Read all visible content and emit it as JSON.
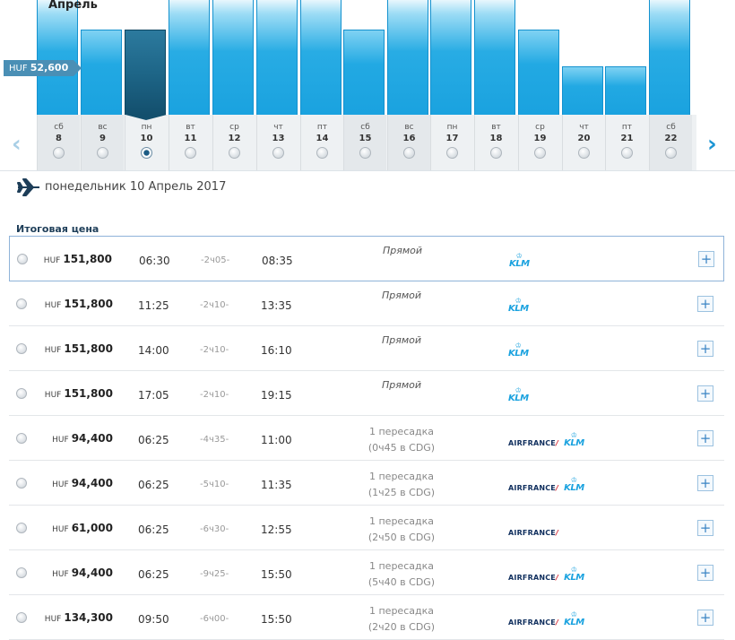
{
  "calendar": {
    "month": "Апрель",
    "lowest_price": {
      "currency": "HUF",
      "amount": "52,600"
    },
    "days": [
      {
        "dow": "сб",
        "num": "8",
        "weekend": true,
        "level": 0.95,
        "selected": false
      },
      {
        "dow": "вс",
        "num": "9",
        "weekend": true,
        "level": 0.7,
        "selected": false
      },
      {
        "dow": "пн",
        "num": "10",
        "weekend": false,
        "level": 0.7,
        "selected": true
      },
      {
        "dow": "вт",
        "num": "11",
        "weekend": false,
        "level": 0.95,
        "selected": false
      },
      {
        "dow": "ср",
        "num": "12",
        "weekend": false,
        "level": 0.95,
        "selected": false
      },
      {
        "dow": "чт",
        "num": "13",
        "weekend": false,
        "level": 0.95,
        "selected": false
      },
      {
        "dow": "пт",
        "num": "14",
        "weekend": false,
        "level": 0.95,
        "selected": false
      },
      {
        "dow": "сб",
        "num": "15",
        "weekend": true,
        "level": 0.7,
        "selected": false
      },
      {
        "dow": "вс",
        "num": "16",
        "weekend": true,
        "level": 0.95,
        "selected": false
      },
      {
        "dow": "пн",
        "num": "17",
        "weekend": false,
        "level": 0.95,
        "selected": false
      },
      {
        "dow": "вт",
        "num": "18",
        "weekend": false,
        "level": 0.95,
        "selected": false
      },
      {
        "dow": "ср",
        "num": "19",
        "weekend": false,
        "level": 0.7,
        "selected": false
      },
      {
        "dow": "чт",
        "num": "20",
        "weekend": false,
        "level": 0.4,
        "selected": false
      },
      {
        "dow": "пт",
        "num": "21",
        "weekend": false,
        "level": 0.4,
        "selected": false
      },
      {
        "dow": "сб",
        "num": "22",
        "weekend": true,
        "level": 0.95,
        "selected": false
      }
    ],
    "prev_icon": "chevron-left-icon",
    "next_icon": "chevron-right-icon"
  },
  "date_header": {
    "icon": "plane-icon",
    "label": "понедельник 10 Апрель 2017"
  },
  "total_price_label": "Итоговая цена",
  "flights": [
    {
      "currency": "HUF",
      "price": "151,800",
      "dep": "06:30",
      "dur": "-2ч05-",
      "arr": "08:35",
      "stops": "Прямой",
      "stops_detail": "",
      "airlines": [
        "KLM"
      ]
    },
    {
      "currency": "HUF",
      "price": "151,800",
      "dep": "11:25",
      "dur": "-2ч10-",
      "arr": "13:35",
      "stops": "Прямой",
      "stops_detail": "",
      "airlines": [
        "KLM"
      ]
    },
    {
      "currency": "HUF",
      "price": "151,800",
      "dep": "14:00",
      "dur": "-2ч10-",
      "arr": "16:10",
      "stops": "Прямой",
      "stops_detail": "",
      "airlines": [
        "KLM"
      ]
    },
    {
      "currency": "HUF",
      "price": "151,800",
      "dep": "17:05",
      "dur": "-2ч10-",
      "arr": "19:15",
      "stops": "Прямой",
      "stops_detail": "",
      "airlines": [
        "KLM"
      ]
    },
    {
      "currency": "HUF",
      "price": "94,400",
      "dep": "06:25",
      "dur": "-4ч35-",
      "arr": "11:00",
      "stops": "1 пересадка",
      "stops_detail": "(0ч45 в CDG)",
      "airlines": [
        "AIRFRANCE",
        "KLM"
      ]
    },
    {
      "currency": "HUF",
      "price": "94,400",
      "dep": "06:25",
      "dur": "-5ч10-",
      "arr": "11:35",
      "stops": "1 пересадка",
      "stops_detail": "(1ч25 в CDG)",
      "airlines": [
        "AIRFRANCE",
        "KLM"
      ]
    },
    {
      "currency": "HUF",
      "price": "61,000",
      "dep": "06:25",
      "dur": "-6ч30-",
      "arr": "12:55",
      "stops": "1 пересадка",
      "stops_detail": "(2ч50 в CDG)",
      "airlines": [
        "AIRFRANCE"
      ]
    },
    {
      "currency": "HUF",
      "price": "94,400",
      "dep": "06:25",
      "dur": "-9ч25-",
      "arr": "15:50",
      "stops": "1 пересадка",
      "stops_detail": "(5ч40 в CDG)",
      "airlines": [
        "AIRFRANCE",
        "KLM"
      ]
    },
    {
      "currency": "HUF",
      "price": "134,300",
      "dep": "09:50",
      "dur": "-6ч00-",
      "arr": "15:50",
      "stops": "1 пересадка",
      "stops_detail": "(2ч20 в CDG)",
      "airlines": [
        "AIRFRANCE",
        "KLM"
      ]
    }
  ]
}
